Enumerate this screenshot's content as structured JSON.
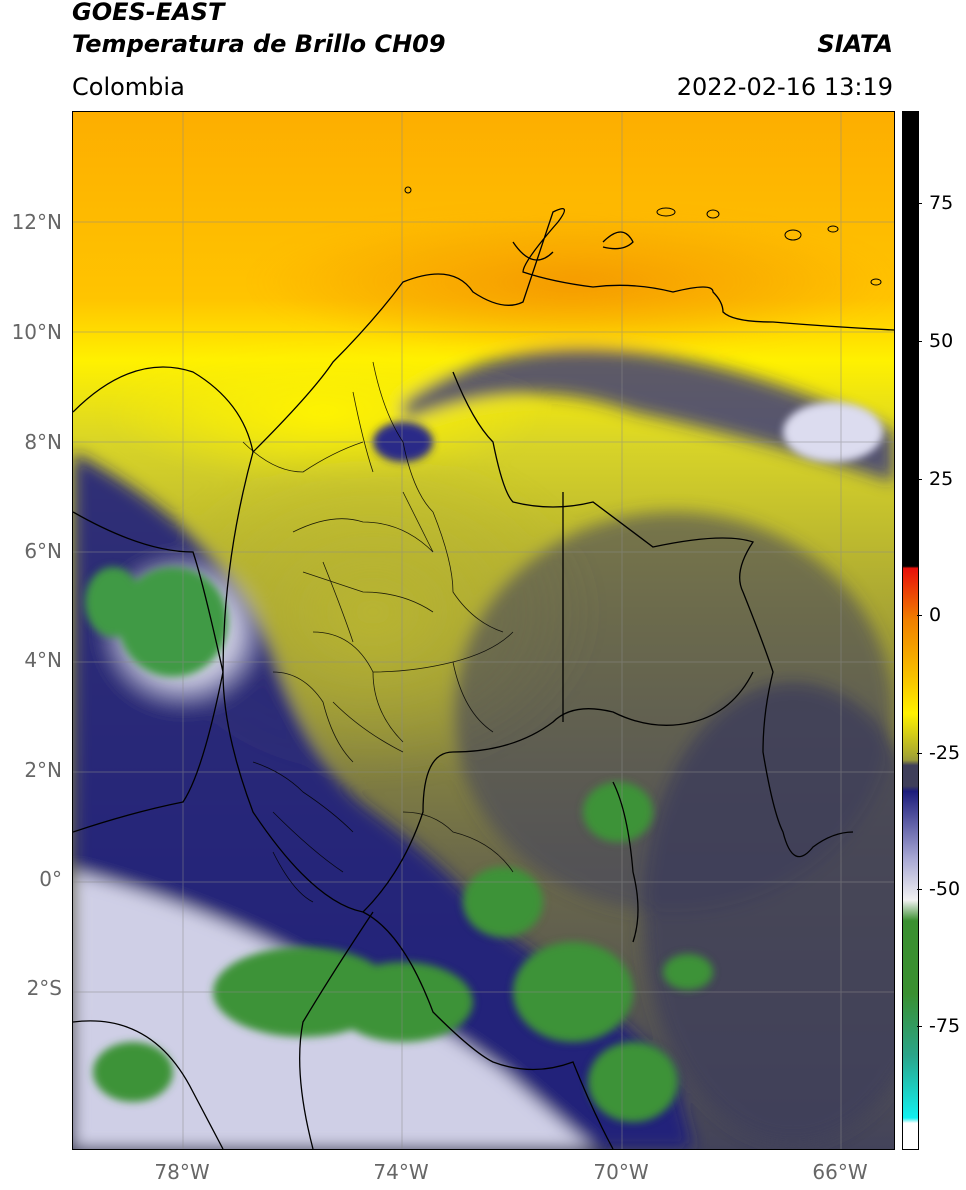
{
  "header": {
    "satellite": "GOES-EAST",
    "product": "Temperatura de Brillo CH09",
    "agency": "SIATA",
    "region": "Colombia",
    "datetime": "2022-02-16 13:19"
  },
  "map": {
    "lat_labels": [
      "12°N",
      "10°N",
      "8°N",
      "6°N",
      "4°N",
      "2°N",
      "0°",
      "2°S"
    ],
    "lon_labels": [
      "78°W",
      "74°W",
      "70°W",
      "66°W"
    ],
    "lat_values": [
      12,
      10,
      8,
      6,
      4,
      2,
      0,
      -2
    ],
    "lon_values": [
      -78,
      -74,
      -70,
      -66
    ],
    "extent": {
      "lon_min": -80,
      "lon_max": -65.05,
      "lat_min": -4.95,
      "lat_max": 14.05
    }
  },
  "colorbar": {
    "ticks": [
      "75",
      "50",
      "25",
      "0",
      "-25",
      "-50",
      "-75"
    ],
    "tick_values": [
      75,
      50,
      25,
      0,
      -25,
      -50,
      -75
    ],
    "range": [
      -95,
      90
    ],
    "colors": {
      "hot": "#000000",
      "red": "#e8100a",
      "orange": "#f7a300",
      "yellow": "#ffee00",
      "olive": "#a8a830",
      "gray": "#3f3f5a",
      "navy": "#1c1c7c",
      "white": "#f2f2f2",
      "green": "#3a9030",
      "teal": "#2aa58a",
      "cyan": "#12f0f0"
    }
  }
}
